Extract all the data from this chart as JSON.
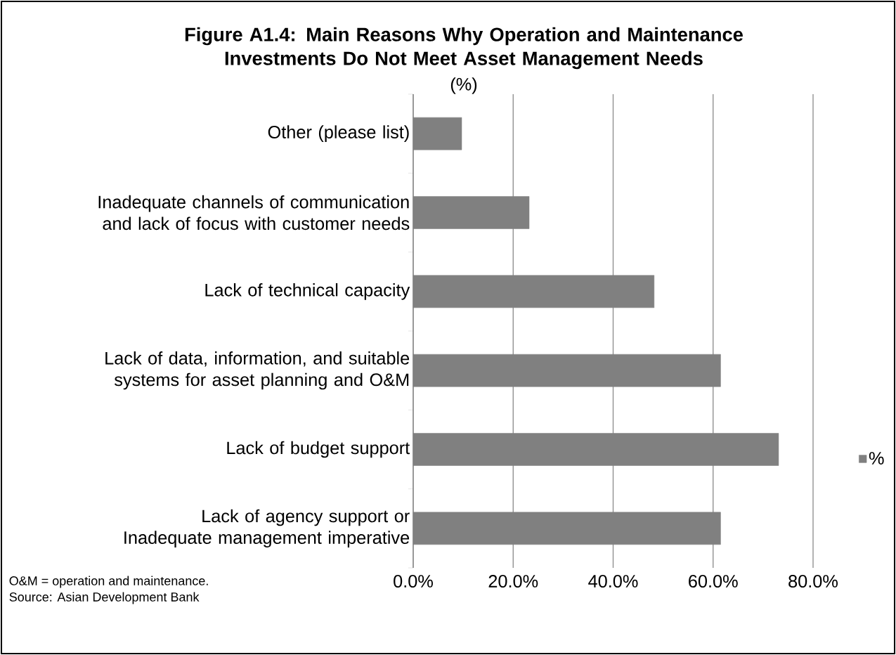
{
  "chart_data": {
    "type": "bar",
    "orientation": "horizontal",
    "title": "Figure A1.4: Main Reasons Why Operation and Maintenance Investments Do Not Meet Asset Management Needs",
    "subtitle": "(%)",
    "categories": [
      "Other (please list)",
      "Inadequate channels of communication and lack of focus with customer needs",
      "Lack of technical capacity",
      "Lack of data, information, and suitable systems for asset planning and O&M",
      "Lack of budget support",
      "Lack of agency support or Inadequate management imperative"
    ],
    "series": [
      {
        "name": "%",
        "color": "#808080",
        "values": [
          9.7,
          23.2,
          48.2,
          61.5,
          73.1,
          61.5
        ]
      }
    ],
    "xlim": [
      0,
      80
    ],
    "xticks": [
      {
        "value": 0,
        "label": "0.0%"
      },
      {
        "value": 20,
        "label": "20.0%"
      },
      {
        "value": 40,
        "label": "40.0%"
      },
      {
        "value": 60,
        "label": "60.0%"
      },
      {
        "value": 80,
        "label": "80.0%"
      }
    ],
    "grid": "x",
    "legend": "right",
    "annotations": [
      "O&M = operation and maintenance.",
      "Source: Asian Development Bank"
    ]
  }
}
